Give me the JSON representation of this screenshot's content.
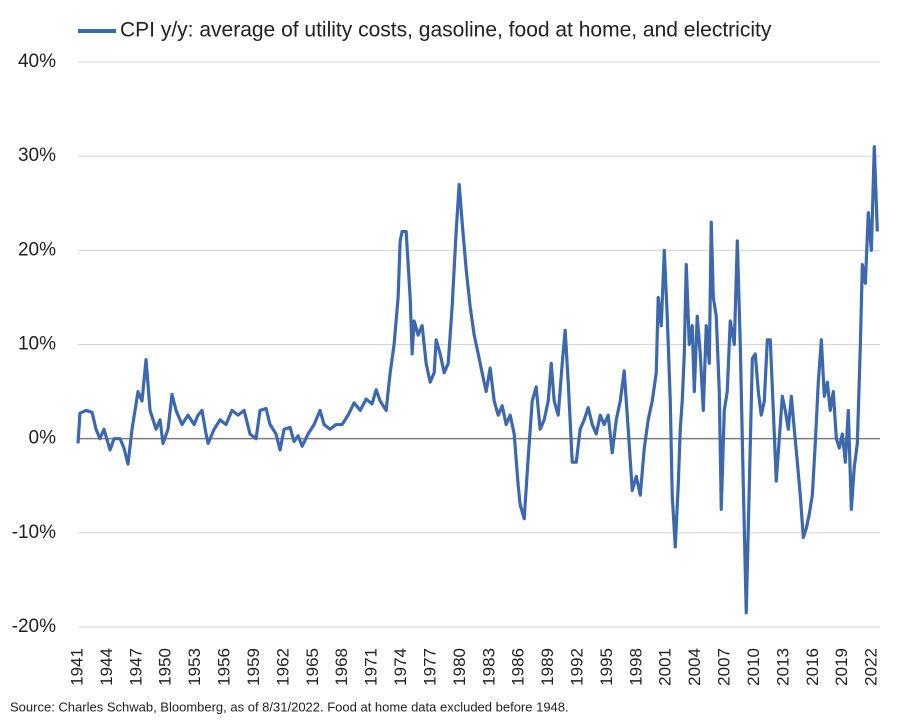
{
  "chart_data": {
    "type": "line",
    "source": "Source: Charles Schwab, Bloomberg, as of 8/31/2022.  Food at home data excluded before 1948.",
    "series": [
      {
        "name": "CPI y/y: average of utility costs, gasoline, food at home, and electricity",
        "color": "#3e68ad",
        "x": [
          1941.0,
          1941.2,
          1941.82,
          1942.43,
          1942.84,
          1943.24,
          1943.65,
          1944.27,
          1944.67,
          1945.29,
          1945.69,
          1946.1,
          1946.51,
          1947.12,
          1947.53,
          1947.94,
          1948.35,
          1948.96,
          1949.37,
          1949.67,
          1950.18,
          1950.59,
          1951.0,
          1951.61,
          1952.22,
          1952.84,
          1953.24,
          1953.65,
          1954.06,
          1954.27,
          1954.88,
          1955.49,
          1956.1,
          1956.71,
          1957.33,
          1957.94,
          1958.55,
          1959.16,
          1959.57,
          1960.18,
          1960.59,
          1961.2,
          1961.61,
          1962.02,
          1962.63,
          1963.04,
          1963.45,
          1963.86,
          1964.47,
          1965.08,
          1965.69,
          1966.1,
          1966.71,
          1967.33,
          1967.94,
          1968.55,
          1969.16,
          1969.78,
          1970.39,
          1971.0,
          1971.41,
          1971.82,
          1972.43,
          1972.84,
          1973.24,
          1973.65,
          1973.86,
          1974.06,
          1974.47,
          1974.88,
          1975.08,
          1975.29,
          1975.69,
          1976.1,
          1976.51,
          1976.92,
          1977.33,
          1977.53,
          1977.94,
          1978.35,
          1978.76,
          1979.16,
          1979.57,
          1979.88,
          1980.18,
          1980.59,
          1981.0,
          1981.41,
          1981.82,
          1982.22,
          1982.63,
          1983.04,
          1983.45,
          1983.86,
          1984.27,
          1984.67,
          1985.08,
          1985.49,
          1985.9,
          1986.1,
          1986.51,
          1986.92,
          1987.33,
          1987.73,
          1988.14,
          1988.55,
          1988.96,
          1989.27,
          1989.57,
          1989.98,
          1990.39,
          1990.69,
          1991.0,
          1991.41,
          1991.82,
          1992.22,
          1992.63,
          1993.04,
          1993.45,
          1993.86,
          1994.27,
          1994.67,
          1995.08,
          1995.49,
          1995.9,
          1996.31,
          1996.71,
          1997.12,
          1997.53,
          1997.94,
          1998.35,
          1998.76,
          1999.16,
          1999.57,
          1999.98,
          2000.18,
          2000.49,
          2000.8,
          2001.1,
          2001.41,
          2001.61,
          2001.92,
          2002.22,
          2002.43,
          2002.63,
          2002.84,
          2003.04,
          2003.35,
          2003.65,
          2003.86,
          2004.16,
          2004.47,
          2004.78,
          2005.08,
          2005.39,
          2005.59,
          2005.8,
          2006.1,
          2006.41,
          2006.61,
          2006.92,
          2007.22,
          2007.53,
          2007.94,
          2008.25,
          2008.55,
          2008.86,
          2009.16,
          2009.47,
          2009.78,
          2010.08,
          2010.39,
          2010.69,
          2011.0,
          2011.31,
          2011.61,
          2011.92,
          2012.22,
          2012.53,
          2012.84,
          2013.14,
          2013.45,
          2013.76,
          2014.06,
          2014.37,
          2014.67,
          2014.98,
          2015.29,
          2015.59,
          2015.9,
          2016.2,
          2016.51,
          2016.82,
          2017.12,
          2017.43,
          2017.73,
          2018.04,
          2018.35,
          2018.65,
          2018.96,
          2019.27,
          2019.57,
          2019.88,
          2020.18,
          2020.49,
          2020.8,
          2021.0,
          2021.31,
          2021.61,
          2021.92,
          2022.22,
          2022.53
        ],
        "values": [
          -0.5,
          2.7,
          3,
          2.8,
          1,
          0,
          1,
          -1.2,
          0,
          0,
          -1,
          -2.7,
          1,
          5,
          4,
          8.4,
          3,
          1,
          2,
          -0.5,
          1,
          4.7,
          3,
          1.5,
          2.5,
          1.5,
          2.5,
          3,
          0.5,
          -0.5,
          1,
          2,
          1.5,
          3,
          2.5,
          3,
          0.5,
          0,
          3,
          3.2,
          1.5,
          0.5,
          -1.2,
          1,
          1.2,
          -0.3,
          0.3,
          -0.8,
          0.5,
          1.5,
          3,
          1.5,
          1,
          1.5,
          1.5,
          2.5,
          3.8,
          3,
          4.2,
          3.7,
          5.2,
          4,
          3,
          7,
          10,
          15,
          21,
          22,
          22,
          15,
          9,
          12.5,
          11,
          12,
          8,
          6,
          7,
          10.5,
          9,
          7,
          8,
          14,
          22,
          27,
          23,
          18,
          14,
          11,
          9,
          7,
          5,
          7.5,
          4,
          2.5,
          3.5,
          1.5,
          2.5,
          0.5,
          -5,
          -7,
          -8.5,
          -2,
          4,
          5.5,
          1,
          2,
          4,
          8,
          4,
          2.5,
          8,
          11.5,
          6,
          -2.5,
          -2.5,
          1,
          2,
          3.3,
          1.5,
          0.5,
          2.5,
          1.5,
          2.5,
          -1.5,
          2,
          4,
          7.2,
          1,
          -5.5,
          -4,
          -6,
          -1,
          2,
          4,
          7,
          15,
          12,
          20,
          13,
          4,
          -6,
          -11.5,
          -5,
          1,
          4,
          9,
          18.5,
          10,
          12,
          5,
          13,
          9,
          3,
          12,
          8,
          23,
          15,
          13,
          5,
          -7.5,
          3,
          5,
          12.5,
          10,
          21,
          10,
          -5,
          -18.5,
          -5,
          8.5,
          9,
          5,
          2.5,
          4,
          10.5,
          10.5,
          3,
          -4.5,
          0,
          4.5,
          3,
          1,
          4.5,
          1,
          -2.5,
          -6,
          -10.5,
          -9.5,
          -8,
          -6,
          -0.5,
          6,
          10.5,
          4.5,
          6,
          3,
          5,
          0,
          -1,
          0.5,
          -2.5,
          3,
          -7.5,
          -3,
          -0.5,
          10,
          18.5,
          16.5,
          24,
          20,
          31,
          22
        ]
      }
    ],
    "xlim": [
      1941,
      2022.7
    ],
    "xticks": [
      1941,
      1944,
      1947,
      1950,
      1953,
      1956,
      1959,
      1962,
      1965,
      1968,
      1971,
      1974,
      1977,
      1980,
      1983,
      1986,
      1989,
      1992,
      1995,
      1998,
      2001,
      2004,
      2007,
      2010,
      2013,
      2016,
      2019,
      2022
    ],
    "ylim": [
      -20,
      40
    ],
    "yticks": [
      {
        "value": -20,
        "label": "-20%"
      },
      {
        "value": -10,
        "label": "-10%"
      },
      {
        "value": 0,
        "label": "0%"
      },
      {
        "value": 10,
        "label": "10%"
      },
      {
        "value": 20,
        "label": "20%"
      },
      {
        "value": 30,
        "label": "30%"
      },
      {
        "value": 40,
        "label": "40%"
      }
    ],
    "grid": true,
    "legend": "top"
  }
}
